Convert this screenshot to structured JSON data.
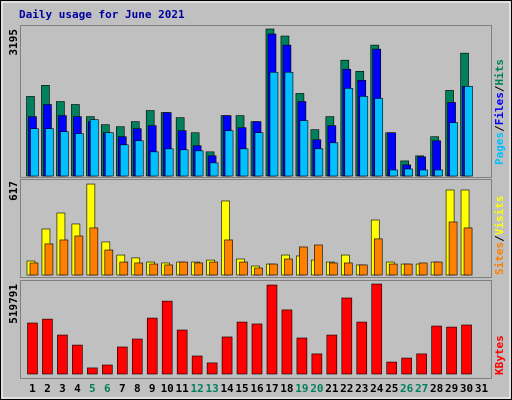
{
  "chart_data": [
    {
      "type": "bar",
      "title": "Daily usage for June 2021",
      "legend_separator": "/",
      "ylim": [
        0,
        3195
      ],
      "yticks": [
        3195
      ],
      "series": [
        {
          "name": "Hits",
          "color": "#00805c",
          "values": [
            1729,
            1970,
            1619,
            1554,
            1291,
            1116,
            1072,
            1182,
            1423,
            1379,
            1269,
            941,
            525,
            1313,
            1313,
            1182,
            3195,
            3042,
            1794,
            1007,
            1291,
            2517,
            2276,
            2845,
            941,
            328,
            438,
            854,
            1860,
            2670,
            0
          ]
        },
        {
          "name": "Files",
          "color": "#0000ff",
          "values": [
            1291,
            1554,
            1313,
            1291,
            1182,
            941,
            854,
            1028,
            1094,
            1379,
            985,
            657,
            438,
            1313,
            1050,
            1182,
            3086,
            2845,
            1619,
            788,
            1094,
            2320,
            2079,
            2757,
            941,
            241,
            416,
            766,
            1598,
            1948,
            0
          ]
        },
        {
          "name": "Pages",
          "color": "#00c0ff",
          "values": [
            1028,
            1028,
            963,
            919,
            1225,
            941,
            678,
            766,
            525,
            591,
            569,
            547,
            285,
            985,
            591,
            941,
            2254,
            2254,
            1204,
            591,
            722,
            1904,
            1729,
            1685,
            131,
            153,
            131,
            131,
            1160,
            1948,
            0
          ]
        }
      ]
    },
    {
      "type": "bar",
      "legend_separator": "/",
      "ylim": [
        0,
        617
      ],
      "yticks": [
        617
      ],
      "series": [
        {
          "name": "Visits",
          "color": "#ffff00",
          "values": [
            92,
            302,
            407,
            335,
            597,
            217,
            131,
            112,
            85,
            79,
            85,
            85,
            98,
            486,
            105,
            59,
            72,
            131,
            125,
            98,
            85,
            131,
            66,
            361,
            85,
            72,
            72,
            85,
            558,
            558,
            0
          ]
        },
        {
          "name": "Sites",
          "color": "#ff8000",
          "values": [
            79,
            204,
            230,
            256,
            309,
            164,
            85,
            79,
            72,
            66,
            85,
            79,
            85,
            230,
            85,
            46,
            72,
            105,
            184,
            197,
            79,
            79,
            66,
            237,
            72,
            72,
            79,
            85,
            348,
            309,
            0
          ]
        }
      ]
    },
    {
      "type": "bar",
      "ylim": [
        0,
        519791
      ],
      "yticks": [
        519791
      ],
      "categories": [
        "1",
        "2",
        "3",
        "4",
        "5",
        "6",
        "7",
        "8",
        "9",
        "10",
        "11",
        "12",
        "13",
        "14",
        "15",
        "16",
        "17",
        "18",
        "19",
        "20",
        "21",
        "22",
        "23",
        "24",
        "25",
        "26",
        "27",
        "28",
        "29",
        "30",
        "31"
      ],
      "category_colors": [
        "#000000",
        "#000000",
        "#000000",
        "#000000",
        "#00805c",
        "#00805c",
        "#000000",
        "#000000",
        "#000000",
        "#000000",
        "#000000",
        "#00805c",
        "#00805c",
        "#000000",
        "#000000",
        "#000000",
        "#000000",
        "#000000",
        "#00805c",
        "#00805c",
        "#000000",
        "#000000",
        "#000000",
        "#000000",
        "#000000",
        "#00805c",
        "#00805c",
        "#000000",
        "#000000",
        "#000000",
        "#000000"
      ],
      "series": [
        {
          "name": "KBytes",
          "color": "#ff0000",
          "values": [
            294541,
            317000,
            225000,
            167000,
            35000,
            52000,
            156000,
            202000,
            323000,
            421000,
            254000,
            104000,
            64000,
            214000,
            300000,
            289000,
            514000,
            370000,
            208000,
            116000,
            225000,
            439000,
            300000,
            519791,
            69000,
            92000,
            116000,
            277000,
            271000,
            283000,
            0
          ]
        }
      ]
    }
  ]
}
